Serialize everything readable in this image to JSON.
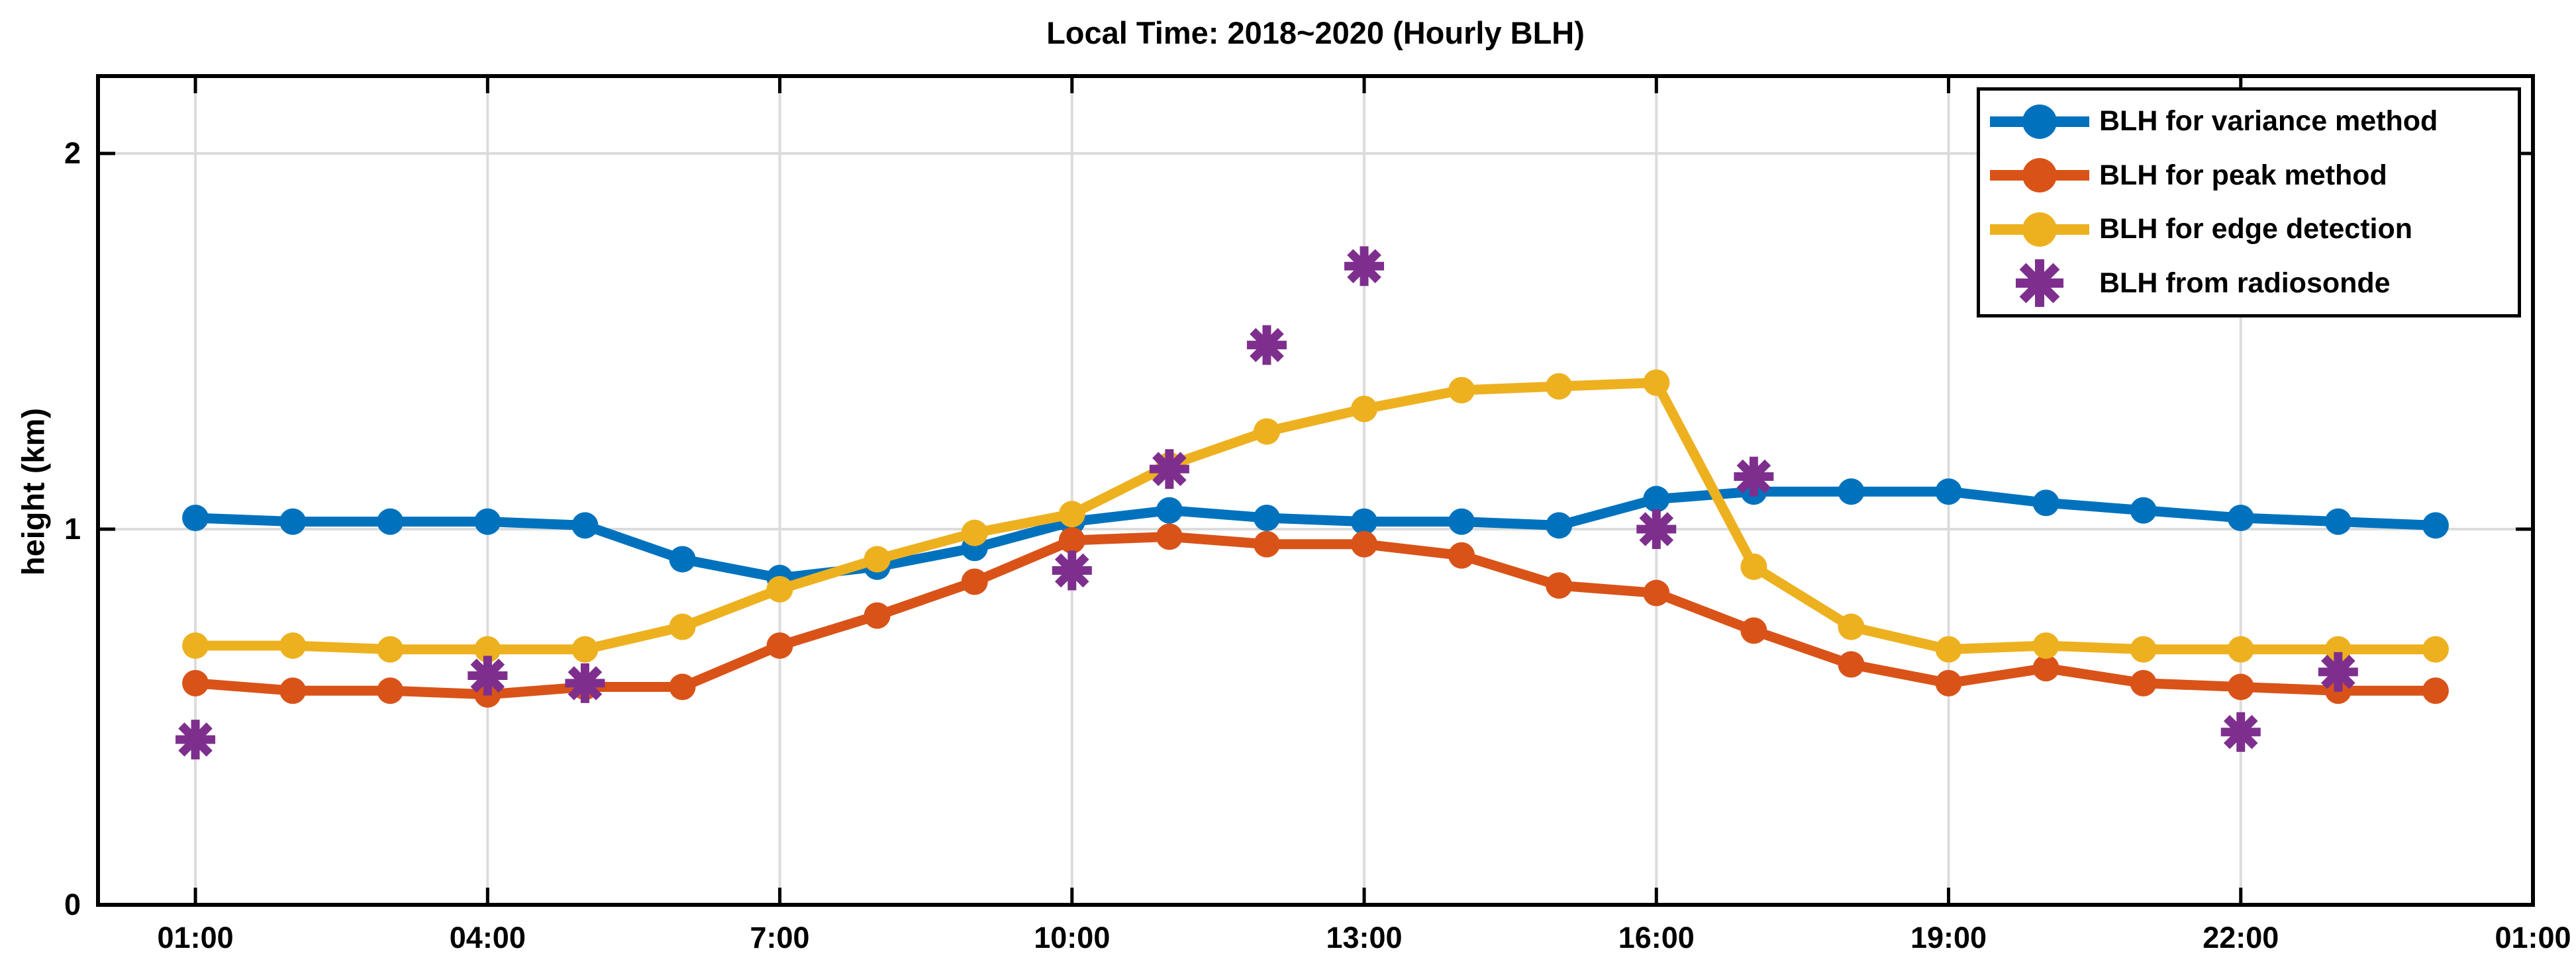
{
  "chart_data": {
    "type": "line",
    "title": "Local Time: 2018~2020 (Hourly BLH)",
    "xlabel": "",
    "ylabel": "height (km)",
    "grid": true,
    "legend_position": "top-right",
    "background_color": "#ffffff",
    "gridline_color": "#dcdcdc",
    "axis_color": "#000000",
    "xlim_hours": [
      0,
      25
    ],
    "ylim": [
      0,
      2.2
    ],
    "y_ticks": [
      0,
      1,
      2
    ],
    "y_tick_labels": [
      "0",
      "1",
      "2"
    ],
    "x_tick_hours": [
      1,
      4,
      7,
      10,
      13,
      16,
      19,
      22,
      25
    ],
    "x_tick_labels": [
      "01:00",
      "04:00",
      "7:00",
      "10:00",
      "13:00",
      "16:00",
      "19:00",
      "22:00",
      "01:00"
    ],
    "hours": [
      1,
      2,
      3,
      4,
      5,
      6,
      7,
      8,
      9,
      10,
      11,
      12,
      13,
      14,
      15,
      16,
      17,
      18,
      19,
      20,
      21,
      22,
      23,
      24
    ],
    "series": [
      {
        "name": "BLH for variance method",
        "color": "#0072BD",
        "marker": "circle",
        "values": [
          1.03,
          1.02,
          1.02,
          1.02,
          1.01,
          0.92,
          0.87,
          0.9,
          0.95,
          1.02,
          1.05,
          1.03,
          1.02,
          1.02,
          1.01,
          1.08,
          1.1,
          1.1,
          1.1,
          1.07,
          1.05,
          1.03,
          1.02,
          1.01
        ]
      },
      {
        "name": "BLH for peak method",
        "color": "#D95319",
        "marker": "circle",
        "values": [
          0.59,
          0.57,
          0.57,
          0.56,
          0.58,
          0.58,
          0.69,
          0.77,
          0.86,
          0.97,
          0.98,
          0.96,
          0.96,
          0.93,
          0.85,
          0.83,
          0.73,
          0.64,
          0.59,
          0.63,
          0.59,
          0.58,
          0.57,
          0.57
        ]
      },
      {
        "name": "BLH for edge detection",
        "color": "#EDB120",
        "marker": "circle",
        "values": [
          0.69,
          0.69,
          0.68,
          0.68,
          0.68,
          0.74,
          0.84,
          0.92,
          0.99,
          1.04,
          1.17,
          1.26,
          1.32,
          1.37,
          1.38,
          1.39,
          0.9,
          0.74,
          0.68,
          0.69,
          0.68,
          0.68,
          0.68,
          0.68
        ]
      },
      {
        "name": "BLH from radiosonde",
        "color": "#7E2F8E",
        "marker": "asterisk",
        "points": [
          {
            "hour": 1,
            "value": 0.44
          },
          {
            "hour": 4,
            "value": 0.61
          },
          {
            "hour": 5,
            "value": 0.59
          },
          {
            "hour": 10,
            "value": 0.89
          },
          {
            "hour": 11,
            "value": 1.16
          },
          {
            "hour": 12,
            "value": 1.49
          },
          {
            "hour": 13,
            "value": 1.7
          },
          {
            "hour": 16,
            "value": 1.0
          },
          {
            "hour": 17,
            "value": 1.14
          },
          {
            "hour": 22,
            "value": 0.46
          },
          {
            "hour": 23,
            "value": 0.62
          }
        ]
      }
    ]
  }
}
